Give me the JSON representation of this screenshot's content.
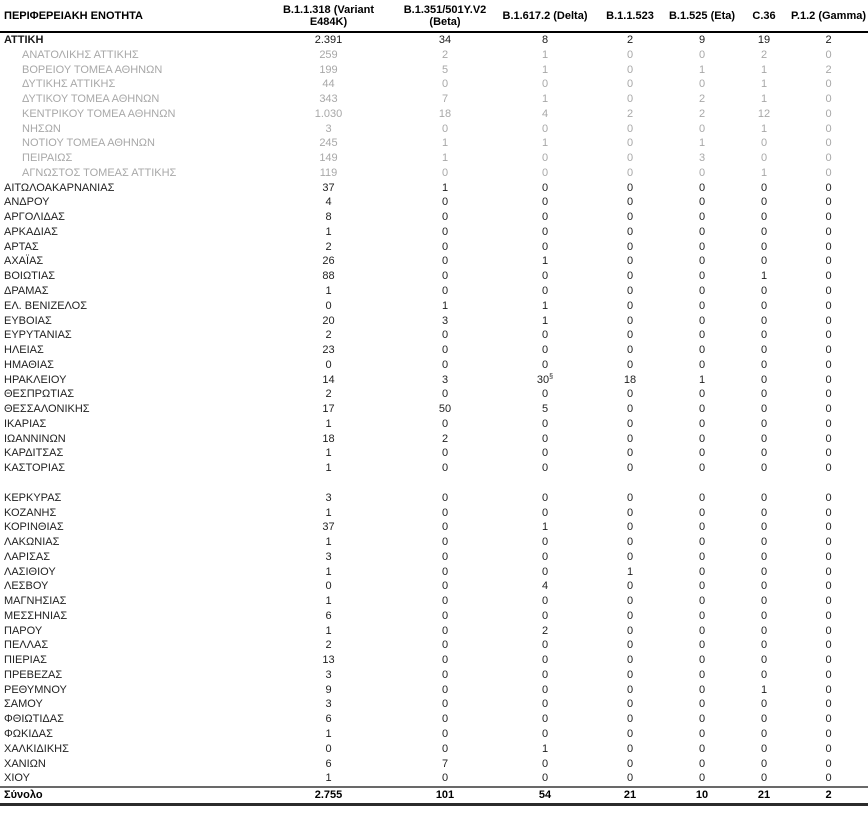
{
  "table": {
    "columns": [
      {
        "label": "ΠΕΡΙΦΕΡΕΙΑΚΗ ΕΝΟΤΗΤΑ"
      },
      {
        "label": "B.1.1.318 (Variant E484K)"
      },
      {
        "label": "B.1.351/501Y.V2 (Beta)"
      },
      {
        "label": "B.1.617.2 (Delta)"
      },
      {
        "label": "B.1.1.523"
      },
      {
        "label": "B.1.525 (Eta)"
      },
      {
        "label": "C.36"
      },
      {
        "label": "P.1.2 (Gamma)"
      }
    ],
    "rows": [
      {
        "name": "ΑΤΤΙΚΗ",
        "values": [
          "2.391",
          "34",
          "8",
          "2",
          "9",
          "19",
          "2"
        ],
        "style": "primary"
      },
      {
        "name": "ΑΝΑΤΟΛΙΚΗΣ ΑΤΤΙΚΗΣ",
        "values": [
          "259",
          "2",
          "1",
          "0",
          "0",
          "2",
          "0"
        ],
        "style": "sub"
      },
      {
        "name": "ΒΟΡΕΙΟΥ ΤΟΜΕΑ ΑΘΗΝΩΝ",
        "values": [
          "199",
          "5",
          "1",
          "0",
          "1",
          "1",
          "2"
        ],
        "style": "sub"
      },
      {
        "name": "ΔΥΤΙΚΗΣ ΑΤΤΙΚΗΣ",
        "values": [
          "44",
          "0",
          "0",
          "0",
          "0",
          "1",
          "0"
        ],
        "style": "sub"
      },
      {
        "name": "ΔΥΤΙΚΟΥ ΤΟΜΕΑ ΑΘΗΝΩΝ",
        "values": [
          "343",
          "7",
          "1",
          "0",
          "2",
          "1",
          "0"
        ],
        "style": "sub"
      },
      {
        "name": "ΚΕΝΤΡΙΚΟΥ ΤΟΜΕΑ ΑΘΗΝΩΝ",
        "values": [
          "1.030",
          "18",
          "4",
          "2",
          "2",
          "12",
          "0"
        ],
        "style": "sub"
      },
      {
        "name": "ΝΗΣΩΝ",
        "values": [
          "3",
          "0",
          "0",
          "0",
          "0",
          "1",
          "0"
        ],
        "style": "sub"
      },
      {
        "name": "ΝΟΤΙΟΥ ΤΟΜΕΑ ΑΘΗΝΩΝ",
        "values": [
          "245",
          "1",
          "1",
          "0",
          "1",
          "0",
          "0"
        ],
        "style": "sub"
      },
      {
        "name": "ΠΕΙΡΑΙΩΣ",
        "values": [
          "149",
          "1",
          "0",
          "0",
          "3",
          "0",
          "0"
        ],
        "style": "sub"
      },
      {
        "name": "ΑΓΝΩΣΤΟΣ ΤΟΜΕΑΣ ΑΤΤΙΚΗΣ",
        "values": [
          "119",
          "0",
          "0",
          "0",
          "0",
          "1",
          "0"
        ],
        "style": "sub"
      },
      {
        "name": "ΑΙΤΩΛΟΑΚΑΡΝΑΝΙΑΣ",
        "values": [
          "37",
          "1",
          "0",
          "0",
          "0",
          "0",
          "0"
        ],
        "style": "normal"
      },
      {
        "name": "ΑΝΔΡΟΥ",
        "values": [
          "4",
          "0",
          "0",
          "0",
          "0",
          "0",
          "0"
        ],
        "style": "normal"
      },
      {
        "name": "ΑΡΓΟΛΙΔΑΣ",
        "values": [
          "8",
          "0",
          "0",
          "0",
          "0",
          "0",
          "0"
        ],
        "style": "normal"
      },
      {
        "name": "ΑΡΚΑΔΙΑΣ",
        "values": [
          "1",
          "0",
          "0",
          "0",
          "0",
          "0",
          "0"
        ],
        "style": "normal"
      },
      {
        "name": "ΑΡΤΑΣ",
        "values": [
          "2",
          "0",
          "0",
          "0",
          "0",
          "0",
          "0"
        ],
        "style": "normal"
      },
      {
        "name": "ΑΧΑΪΑΣ",
        "values": [
          "26",
          "0",
          "1",
          "0",
          "0",
          "0",
          "0"
        ],
        "style": "normal"
      },
      {
        "name": "ΒΟΙΩΤΙΑΣ",
        "values": [
          "88",
          "0",
          "0",
          "0",
          "0",
          "1",
          "0"
        ],
        "style": "normal"
      },
      {
        "name": "ΔΡΑΜΑΣ",
        "values": [
          "1",
          "0",
          "0",
          "0",
          "0",
          "0",
          "0"
        ],
        "style": "normal"
      },
      {
        "name": "ΕΛ. ΒΕΝΙΖΕΛΟΣ",
        "values": [
          "0",
          "1",
          "1",
          "0",
          "0",
          "0",
          "0"
        ],
        "style": "normal"
      },
      {
        "name": "ΕΥΒΟΙΑΣ",
        "values": [
          "20",
          "3",
          "1",
          "0",
          "0",
          "0",
          "0"
        ],
        "style": "normal"
      },
      {
        "name": "ΕΥΡΥΤΑΝΙΑΣ",
        "values": [
          "2",
          "0",
          "0",
          "0",
          "0",
          "0",
          "0"
        ],
        "style": "normal"
      },
      {
        "name": "ΗΛΕΙΑΣ",
        "values": [
          "23",
          "0",
          "0",
          "0",
          "0",
          "0",
          "0"
        ],
        "style": "normal"
      },
      {
        "name": "ΗΜΑΘΙΑΣ",
        "values": [
          "0",
          "0",
          "0",
          "0",
          "0",
          "0",
          "0"
        ],
        "style": "normal"
      },
      {
        "name": "ΗΡΑΚΛΕΙΟΥ",
        "values": [
          "14",
          "3",
          "30§",
          "18",
          "1",
          "0",
          "0"
        ],
        "style": "normal"
      },
      {
        "name": "ΘΕΣΠΡΩΤΙΑΣ",
        "values": [
          "2",
          "0",
          "0",
          "0",
          "0",
          "0",
          "0"
        ],
        "style": "normal"
      },
      {
        "name": "ΘΕΣΣΑΛΟΝΙΚΗΣ",
        "values": [
          "17",
          "50",
          "5",
          "0",
          "0",
          "0",
          "0"
        ],
        "style": "normal"
      },
      {
        "name": "ΙΚΑΡΙΑΣ",
        "values": [
          "1",
          "0",
          "0",
          "0",
          "0",
          "0",
          "0"
        ],
        "style": "normal"
      },
      {
        "name": "ΙΩΑΝΝΙΝΩΝ",
        "values": [
          "18",
          "2",
          "0",
          "0",
          "0",
          "0",
          "0"
        ],
        "style": "normal"
      },
      {
        "name": "ΚΑΡΔΙΤΣΑΣ",
        "values": [
          "1",
          "0",
          "0",
          "0",
          "0",
          "0",
          "0"
        ],
        "style": "normal"
      },
      {
        "name": "ΚΑΣΤΟΡΙΑΣ",
        "values": [
          "1",
          "0",
          "0",
          "0",
          "0",
          "0",
          "0"
        ],
        "style": "normal"
      },
      {
        "name": "",
        "values": [
          "",
          "",
          "",
          "",
          "",
          "",
          ""
        ],
        "style": "spacer"
      },
      {
        "name": "ΚΕΡΚΥΡΑΣ",
        "values": [
          "3",
          "0",
          "0",
          "0",
          "0",
          "0",
          "0"
        ],
        "style": "normal"
      },
      {
        "name": "ΚΟΖΑΝΗΣ",
        "values": [
          "1",
          "0",
          "0",
          "0",
          "0",
          "0",
          "0"
        ],
        "style": "normal"
      },
      {
        "name": "ΚΟΡΙΝΘΙΑΣ",
        "values": [
          "37",
          "0",
          "1",
          "0",
          "0",
          "0",
          "0"
        ],
        "style": "normal"
      },
      {
        "name": "ΛΑΚΩΝΙΑΣ",
        "values": [
          "1",
          "0",
          "0",
          "0",
          "0",
          "0",
          "0"
        ],
        "style": "normal"
      },
      {
        "name": "ΛΑΡΙΣΑΣ",
        "values": [
          "3",
          "0",
          "0",
          "0",
          "0",
          "0",
          "0"
        ],
        "style": "normal"
      },
      {
        "name": "ΛΑΣΙΘΙΟΥ",
        "values": [
          "1",
          "0",
          "0",
          "1",
          "0",
          "0",
          "0"
        ],
        "style": "normal"
      },
      {
        "name": "ΛΕΣΒΟΥ",
        "values": [
          "0",
          "0",
          "4",
          "0",
          "0",
          "0",
          "0"
        ],
        "style": "normal"
      },
      {
        "name": "ΜΑΓΝΗΣΙΑΣ",
        "values": [
          "1",
          "0",
          "0",
          "0",
          "0",
          "0",
          "0"
        ],
        "style": "normal"
      },
      {
        "name": "ΜΕΣΣΗΝΙΑΣ",
        "values": [
          "6",
          "0",
          "0",
          "0",
          "0",
          "0",
          "0"
        ],
        "style": "normal"
      },
      {
        "name": "ΠΑΡΟΥ",
        "values": [
          "1",
          "0",
          "2",
          "0",
          "0",
          "0",
          "0"
        ],
        "style": "normal"
      },
      {
        "name": "ΠΕΛΛΑΣ",
        "values": [
          "2",
          "0",
          "0",
          "0",
          "0",
          "0",
          "0"
        ],
        "style": "normal"
      },
      {
        "name": "ΠΙΕΡΙΑΣ",
        "values": [
          "13",
          "0",
          "0",
          "0",
          "0",
          "0",
          "0"
        ],
        "style": "normal"
      },
      {
        "name": "ΠΡΕΒΕΖΑΣ",
        "values": [
          "3",
          "0",
          "0",
          "0",
          "0",
          "0",
          "0"
        ],
        "style": "normal"
      },
      {
        "name": "ΡΕΘΥΜΝΟΥ",
        "values": [
          "9",
          "0",
          "0",
          "0",
          "0",
          "1",
          "0"
        ],
        "style": "normal"
      },
      {
        "name": "ΣΑΜΟΥ",
        "values": [
          "3",
          "0",
          "0",
          "0",
          "0",
          "0",
          "0"
        ],
        "style": "normal"
      },
      {
        "name": "ΦΘΙΩΤΙΔΑΣ",
        "values": [
          "6",
          "0",
          "0",
          "0",
          "0",
          "0",
          "0"
        ],
        "style": "normal"
      },
      {
        "name": "ΦΩΚΙΔΑΣ",
        "values": [
          "1",
          "0",
          "0",
          "0",
          "0",
          "0",
          "0"
        ],
        "style": "normal"
      },
      {
        "name": "ΧΑΛΚΙΔΙΚΗΣ",
        "values": [
          "0",
          "0",
          "1",
          "0",
          "0",
          "0",
          "0"
        ],
        "style": "normal"
      },
      {
        "name": "ΧΑΝΙΩΝ",
        "values": [
          "6",
          "7",
          "0",
          "0",
          "0",
          "0",
          "0"
        ],
        "style": "normal"
      },
      {
        "name": "ΧΙΟΥ",
        "values": [
          "1",
          "0",
          "0",
          "0",
          "0",
          "0",
          "0"
        ],
        "style": "normal"
      }
    ],
    "footer": {
      "name": "Σύνολο",
      "values": [
        "2.755",
        "101",
        "54",
        "21",
        "10",
        "21",
        "2"
      ]
    }
  },
  "colors": {
    "text_primary": "#1a1a1a",
    "text_sub": "#a8a8a8",
    "header_border": "#000000",
    "footer_border_top": "#696969",
    "footer_border_bottom": "#2b2b2b"
  }
}
